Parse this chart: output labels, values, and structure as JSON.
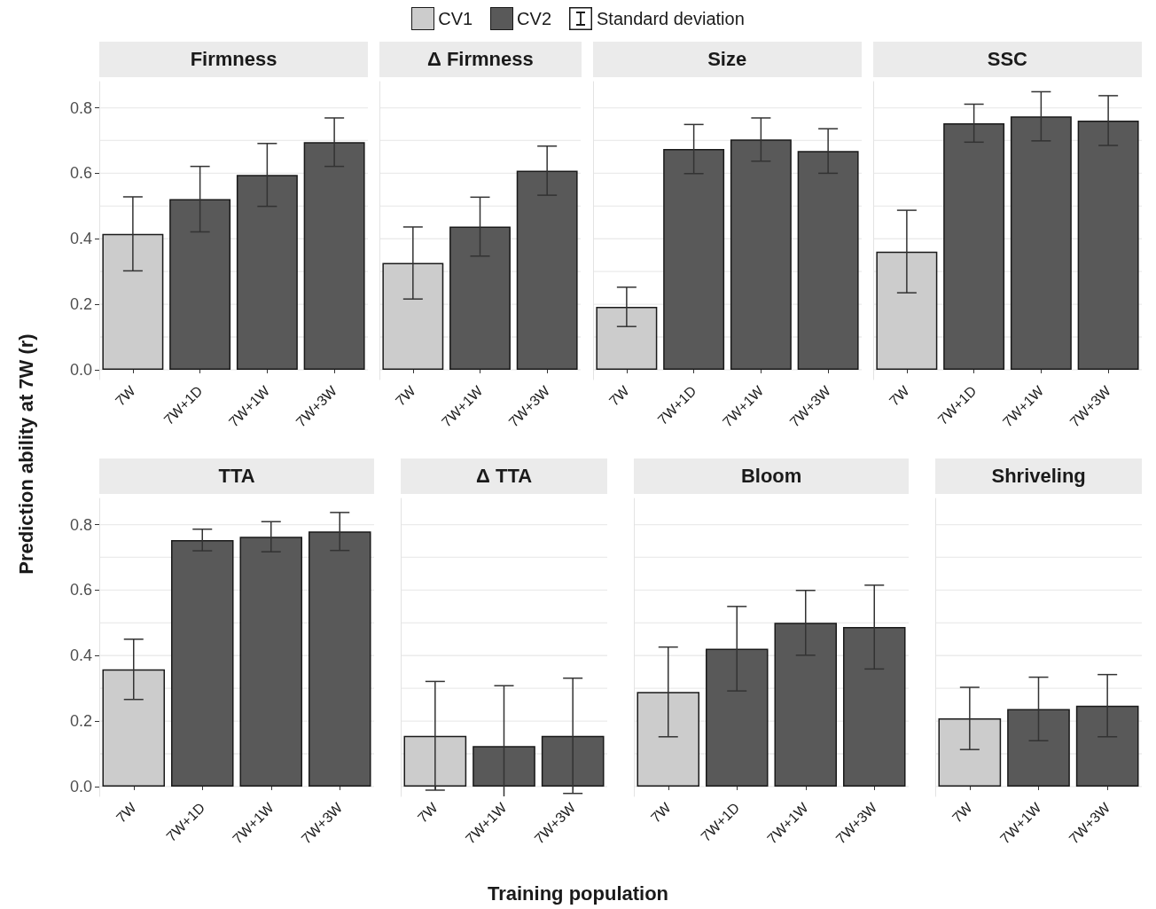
{
  "chart_data": [
    {
      "type": "bar",
      "title": "Firmness",
      "ylabel": "Prediction ability at 7W (r)",
      "legend": "top",
      "annotations": [
        "Standard deviation"
      ],
      "stacked": true,
      "grid": "y",
      "categories": [
        "7W",
        "7W+1D",
        "7W+1W",
        "7W+3W"
      ],
      "series": [
        {
          "name": "CV1",
          "color": "#cccccc",
          "values": [
            0.415,
            null,
            null,
            null
          ],
          "errors": [
            0.113,
            null,
            null,
            null
          ]
        },
        {
          "name": "CV2",
          "color": "#595959",
          "values": [
            null,
            0.521,
            0.595,
            0.695
          ],
          "errors": [
            null,
            0.1,
            0.096,
            0.074
          ]
        }
      ],
      "ylim": [
        -0.03,
        0.88
      ],
      "yticks": [
        {
          "value": 0,
          "label": "0.0"
        },
        {
          "value": 0.1,
          "label": null
        },
        {
          "value": 0.2,
          "label": "0.2"
        },
        {
          "value": 0.3,
          "label": null
        },
        {
          "value": 0.4,
          "label": "0.4"
        },
        {
          "value": 0.5,
          "label": null
        },
        {
          "value": 0.6,
          "label": "0.6"
        },
        {
          "value": 0.7,
          "label": null
        },
        {
          "value": 0.8,
          "label": "0.8"
        }
      ]
    },
    {
      "type": "bar",
      "title": "Δ Firmness",
      "stacked": true,
      "grid": "y",
      "tick_labels": "x",
      "categories": [
        "7W",
        "7W+1W",
        "7W+3W"
      ],
      "series": [
        {
          "name": "CV1",
          "color": "#cccccc",
          "values": [
            0.326,
            null,
            null
          ],
          "errors": [
            0.11,
            null,
            null
          ]
        },
        {
          "name": "CV2",
          "color": "#595959",
          "values": [
            null,
            0.437,
            0.608
          ],
          "errors": [
            null,
            0.09,
            0.075
          ]
        }
      ],
      "ylim": [
        -0.03,
        0.88
      ],
      "yticks": [
        {
          "value": 0,
          "label": null
        },
        {
          "value": 0.1,
          "label": null
        },
        {
          "value": 0.2,
          "label": null
        },
        {
          "value": 0.3,
          "label": null
        },
        {
          "value": 0.4,
          "label": null
        },
        {
          "value": 0.5,
          "label": null
        },
        {
          "value": 0.6,
          "label": null
        },
        {
          "value": 0.7,
          "label": null
        },
        {
          "value": 0.8,
          "label": null
        }
      ]
    },
    {
      "type": "bar",
      "title": "Size",
      "stacked": true,
      "grid": "y",
      "tick_labels": "x",
      "categories": [
        "7W",
        "7W+1D",
        "7W+1W",
        "7W+3W"
      ],
      "series": [
        {
          "name": "CV1",
          "color": "#cccccc",
          "values": [
            0.192,
            null,
            null,
            null
          ],
          "errors": [
            0.06,
            null,
            null,
            null
          ]
        },
        {
          "name": "CV2",
          "color": "#595959",
          "values": [
            null,
            0.674,
            0.703,
            0.668
          ],
          "errors": [
            null,
            0.075,
            0.066,
            0.068
          ]
        }
      ],
      "ylim": [
        -0.03,
        0.88
      ],
      "yticks": [
        {
          "value": 0,
          "label": null
        },
        {
          "value": 0.1,
          "label": null
        },
        {
          "value": 0.2,
          "label": null
        },
        {
          "value": 0.3,
          "label": null
        },
        {
          "value": 0.4,
          "label": null
        },
        {
          "value": 0.5,
          "label": null
        },
        {
          "value": 0.6,
          "label": null
        },
        {
          "value": 0.7,
          "label": null
        },
        {
          "value": 0.8,
          "label": null
        }
      ]
    },
    {
      "type": "bar",
      "title": "SSC",
      "stacked": true,
      "grid": "y",
      "tick_labels": "x",
      "categories": [
        "7W",
        "7W+1D",
        "7W+1W",
        "7W+3W"
      ],
      "series": [
        {
          "name": "CV1",
          "color": "#cccccc",
          "values": [
            0.361,
            null,
            null,
            null
          ],
          "errors": [
            0.126,
            null,
            null,
            null
          ]
        },
        {
          "name": "CV2",
          "color": "#595959",
          "values": [
            null,
            0.753,
            0.774,
            0.761
          ],
          "errors": [
            null,
            0.058,
            0.075,
            0.076
          ]
        }
      ],
      "ylim": [
        -0.03,
        0.88
      ],
      "yticks": [
        {
          "value": 0,
          "label": null
        },
        {
          "value": 0.1,
          "label": null
        },
        {
          "value": 0.2,
          "label": null
        },
        {
          "value": 0.3,
          "label": null
        },
        {
          "value": 0.4,
          "label": null
        },
        {
          "value": 0.5,
          "label": null
        },
        {
          "value": 0.6,
          "label": null
        },
        {
          "value": 0.7,
          "label": null
        },
        {
          "value": 0.8,
          "label": null
        }
      ]
    },
    {
      "type": "bar",
      "title": "TTA",
      "stacked": true,
      "grid": "y",
      "categories": [
        "7W",
        "7W+1D",
        "7W+1W",
        "7W+3W"
      ],
      "series": [
        {
          "name": "CV1",
          "color": "#cccccc",
          "values": [
            0.358,
            null,
            null,
            null
          ],
          "errors": [
            0.092,
            null,
            null,
            null
          ]
        },
        {
          "name": "CV2",
          "color": "#595959",
          "values": [
            null,
            0.753,
            0.763,
            0.779
          ],
          "errors": [
            null,
            0.033,
            0.046,
            0.058
          ]
        }
      ],
      "ylim": [
        -0.03,
        0.88
      ],
      "yticks": [
        {
          "value": 0,
          "label": "0.0"
        },
        {
          "value": 0.1,
          "label": null
        },
        {
          "value": 0.2,
          "label": "0.2"
        },
        {
          "value": 0.3,
          "label": null
        },
        {
          "value": 0.4,
          "label": "0.4"
        },
        {
          "value": 0.5,
          "label": null
        },
        {
          "value": 0.6,
          "label": "0.6"
        },
        {
          "value": 0.7,
          "label": null
        },
        {
          "value": 0.8,
          "label": "0.8"
        }
      ]
    },
    {
      "type": "bar",
      "title": "Δ TTA",
      "xlabel": "Training population",
      "stacked": true,
      "grid": "y",
      "tick_labels": "x",
      "categories": [
        "7W",
        "7W+1W",
        "7W+3W"
      ],
      "series": [
        {
          "name": "CV1",
          "color": "#cccccc",
          "values": [
            0.155,
            null,
            null
          ],
          "errors": [
            0.166,
            null,
            null
          ]
        },
        {
          "name": "CV2",
          "color": "#595959",
          "values": [
            null,
            0.124,
            0.155
          ],
          "errors": [
            null,
            0.184,
            0.176
          ]
        }
      ],
      "ylim": [
        -0.03,
        0.88
      ],
      "yticks": [
        {
          "value": 0,
          "label": null
        },
        {
          "value": 0.1,
          "label": null
        },
        {
          "value": 0.2,
          "label": null
        },
        {
          "value": 0.3,
          "label": null
        },
        {
          "value": 0.4,
          "label": null
        },
        {
          "value": 0.5,
          "label": null
        },
        {
          "value": 0.6,
          "label": null
        },
        {
          "value": 0.7,
          "label": null
        },
        {
          "value": 0.8,
          "label": null
        }
      ]
    },
    {
      "type": "bar",
      "title": "Bloom",
      "stacked": true,
      "grid": "y",
      "tick_labels": "x",
      "categories": [
        "7W",
        "7W+1D",
        "7W+1W",
        "7W+3W"
      ],
      "series": [
        {
          "name": "CV1",
          "color": "#cccccc",
          "values": [
            0.289,
            null,
            null,
            null
          ],
          "errors": [
            0.137,
            null,
            null,
            null
          ]
        },
        {
          "name": "CV2",
          "color": "#595959",
          "values": [
            null,
            0.421,
            0.5,
            0.487
          ],
          "errors": [
            null,
            0.129,
            0.099,
            0.128
          ]
        }
      ],
      "ylim": [
        -0.03,
        0.88
      ],
      "yticks": [
        {
          "value": 0,
          "label": null
        },
        {
          "value": 0.1,
          "label": null
        },
        {
          "value": 0.2,
          "label": null
        },
        {
          "value": 0.3,
          "label": null
        },
        {
          "value": 0.4,
          "label": null
        },
        {
          "value": 0.5,
          "label": null
        },
        {
          "value": 0.6,
          "label": null
        },
        {
          "value": 0.7,
          "label": null
        },
        {
          "value": 0.8,
          "label": null
        }
      ]
    },
    {
      "type": "bar",
      "title": "Shriveling",
      "stacked": true,
      "grid": "y",
      "tick_labels": "x",
      "categories": [
        "7W",
        "7W+1W",
        "7W+3W"
      ],
      "series": [
        {
          "name": "CV1",
          "color": "#cccccc",
          "values": [
            0.208,
            null,
            null
          ],
          "errors": [
            0.095,
            null,
            null
          ]
        },
        {
          "name": "CV2",
          "color": "#595959",
          "values": [
            null,
            0.237,
            0.247
          ],
          "errors": [
            null,
            0.097,
            0.095
          ]
        }
      ],
      "ylim": [
        -0.03,
        0.88
      ],
      "yticks": [
        {
          "value": 0,
          "label": null
        },
        {
          "value": 0.1,
          "label": null
        },
        {
          "value": 0.2,
          "label": null
        },
        {
          "value": 0.3,
          "label": null
        },
        {
          "value": 0.4,
          "label": null
        },
        {
          "value": 0.5,
          "label": null
        },
        {
          "value": 0.6,
          "label": null
        },
        {
          "value": 0.7,
          "label": null
        },
        {
          "value": 0.8,
          "label": null
        }
      ]
    }
  ]
}
